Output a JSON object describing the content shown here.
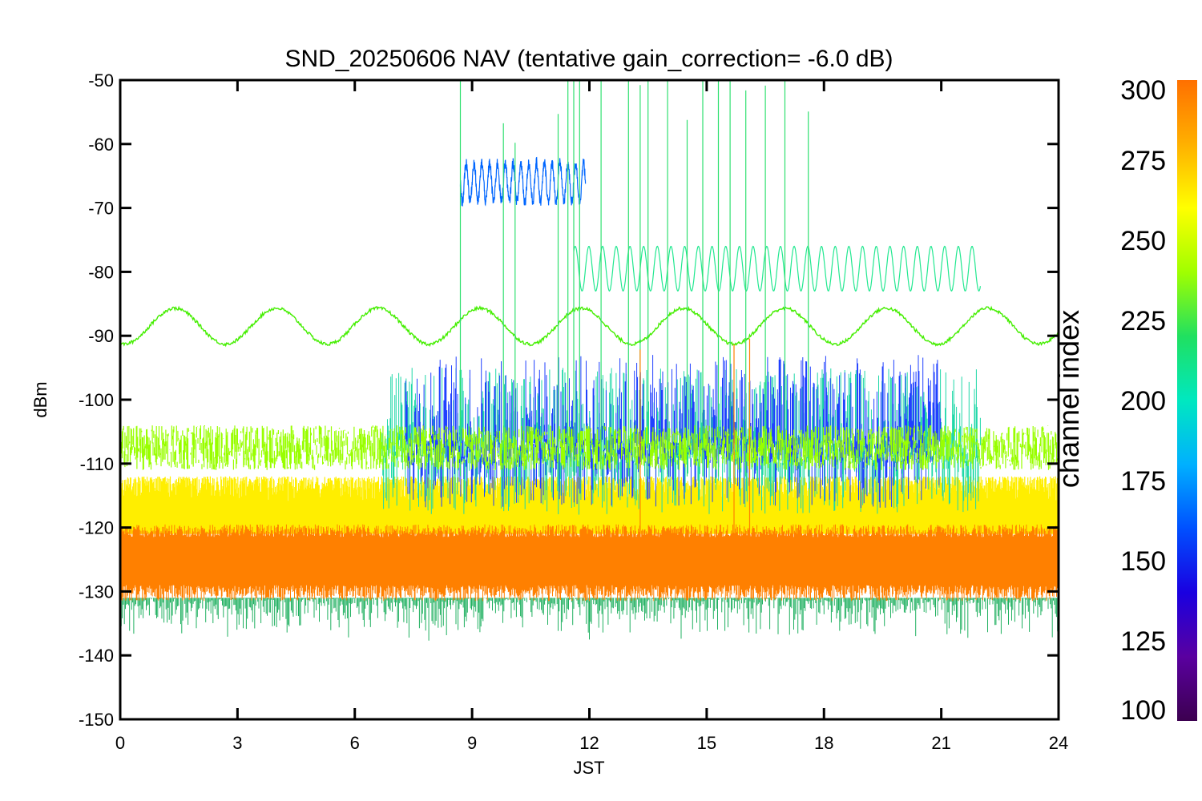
{
  "chart_data": {
    "type": "line",
    "title": "SND_20250606 NAV (tentative gain_correction= -6.0 dB)",
    "xlabel": "JST",
    "ylabel": "dBm",
    "xlim": [
      0,
      24
    ],
    "ylim": [
      -150,
      -50
    ],
    "xticks": [
      "0",
      "3",
      "6",
      "9",
      "12",
      "15",
      "18",
      "21",
      "24"
    ],
    "yticks": [
      "-50",
      "-60",
      "-70",
      "-80",
      "-90",
      "-100",
      "-110",
      "-120",
      "-130",
      "-140",
      "-150"
    ],
    "grid": false,
    "colorbar": {
      "label": "channel index",
      "range": [
        100,
        300
      ],
      "ticks": [
        "300",
        "275",
        "250",
        "225",
        "200",
        "175",
        "150",
        "125",
        "100"
      ],
      "colormap": [
        "#3c0050",
        "#5a00a0",
        "#1a00e0",
        "#0050ff",
        "#00b0ff",
        "#00e8c0",
        "#20e060",
        "#a0ff00",
        "#ffff00",
        "#ffb000",
        "#ff7000"
      ]
    },
    "series": [
      {
        "channel": 290,
        "color": "#ff8000",
        "description_values": {
          "x": [
            0,
            24
          ],
          "y_center": -125,
          "y_spread": [
            -131,
            -119
          ]
        }
      },
      {
        "channel": 268,
        "color": "#ffee00",
        "x": [
          0,
          24
        ],
        "y_center": -117,
        "y_spread": [
          -122,
          -110
        ]
      },
      {
        "channel": 245,
        "color": "#99ff00",
        "x": [
          0,
          24
        ],
        "y_center": -108,
        "y_spread": [
          -111,
          -104
        ]
      },
      {
        "channel": 240,
        "color": "#44ee00",
        "x": [
          0,
          24
        ],
        "y_center": -88.5,
        "amplitude": 2.8,
        "period_hours": 2.6
      },
      {
        "channel": 205,
        "color": "#22e890",
        "x": [
          11.6,
          22
        ],
        "y_center": -79.5,
        "amplitude": 3.5,
        "period_hours": 0.35
      },
      {
        "channel": 160,
        "color": "#0066ff",
        "x": [
          8.7,
          11.9
        ],
        "y_center": -66,
        "amplitude": 3,
        "period_hours": 0.2
      },
      {
        "channel": 140,
        "color": "#2040ff",
        "x": [
          7.3,
          21
        ],
        "y_range": [
          -117,
          -93
        ]
      },
      {
        "channel": 195,
        "color": "#20d8a8",
        "x": [
          6.7,
          22
        ],
        "y_range": [
          -118,
          -95
        ]
      }
    ]
  }
}
